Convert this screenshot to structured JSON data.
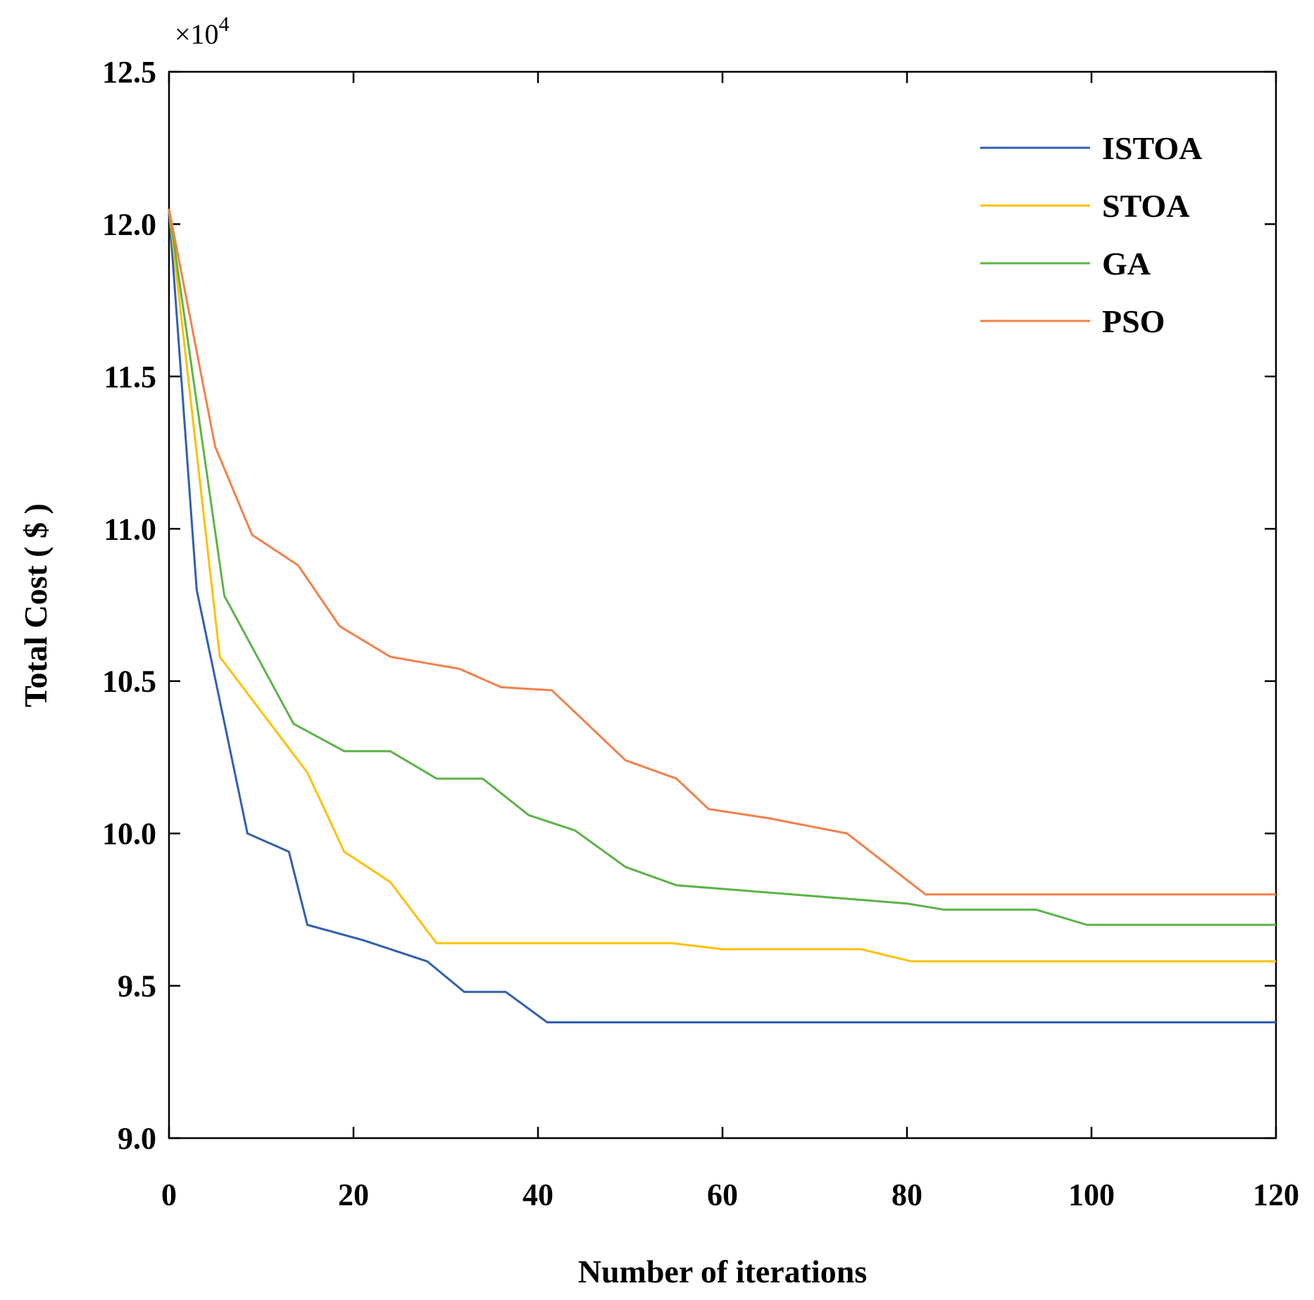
{
  "chart_data": {
    "type": "line",
    "xlabel": "Number of iterations",
    "ylabel": "Total Cost ( $ )",
    "y_multiplier": "×10",
    "y_multiplier_exp": "4",
    "xlim": [
      0,
      120
    ],
    "ylim": [
      9.0,
      12.5
    ],
    "xticks": [
      0,
      20,
      40,
      60,
      80,
      100,
      120
    ],
    "yticks": [
      9.0,
      9.5,
      10.0,
      10.5,
      11.0,
      11.5,
      12.0,
      12.5
    ],
    "xtick_labels": [
      "0",
      "20",
      "40",
      "60",
      "80",
      "100",
      "120"
    ],
    "ytick_labels": [
      "9.0",
      "9.5",
      "10.0",
      "10.5",
      "11.0",
      "11.5",
      "12.0",
      "12.5"
    ],
    "grid": false,
    "legend_position": "top-right",
    "series": [
      {
        "name": "ISTOA",
        "color": "#3060b0",
        "points": [
          [
            0,
            12.05
          ],
          [
            3,
            10.8
          ],
          [
            8.5,
            10.0
          ],
          [
            13,
            9.94
          ],
          [
            15,
            9.7
          ],
          [
            21,
            9.65
          ],
          [
            28,
            9.58
          ],
          [
            32,
            9.48
          ],
          [
            36.5,
            9.48
          ],
          [
            41,
            9.38
          ],
          [
            120,
            9.38
          ]
        ]
      },
      {
        "name": "STOA",
        "color": "#ffc000",
        "points": [
          [
            0,
            12.05
          ],
          [
            5.5,
            10.58
          ],
          [
            15,
            10.2
          ],
          [
            19,
            9.94
          ],
          [
            24,
            9.84
          ],
          [
            29,
            9.64
          ],
          [
            54.5,
            9.64
          ],
          [
            60,
            9.62
          ],
          [
            75,
            9.62
          ],
          [
            80.5,
            9.58
          ],
          [
            120,
            9.58
          ]
        ]
      },
      {
        "name": "GA",
        "color": "#5ab446",
        "points": [
          [
            0,
            12.05
          ],
          [
            6,
            10.78
          ],
          [
            13.5,
            10.36
          ],
          [
            19,
            10.27
          ],
          [
            24,
            10.27
          ],
          [
            29,
            10.18
          ],
          [
            34,
            10.18
          ],
          [
            39,
            10.06
          ],
          [
            44,
            10.01
          ],
          [
            49.5,
            9.89
          ],
          [
            55,
            9.83
          ],
          [
            80,
            9.77
          ],
          [
            84,
            9.75
          ],
          [
            94,
            9.75
          ],
          [
            99.5,
            9.7
          ],
          [
            120,
            9.7
          ]
        ]
      },
      {
        "name": "PSO",
        "color": "#f4804a",
        "points": [
          [
            0,
            12.05
          ],
          [
            5,
            11.27
          ],
          [
            9,
            10.98
          ],
          [
            14,
            10.88
          ],
          [
            18.5,
            10.68
          ],
          [
            24,
            10.58
          ],
          [
            31.5,
            10.54
          ],
          [
            36,
            10.48
          ],
          [
            41.5,
            10.47
          ],
          [
            49.5,
            10.24
          ],
          [
            55,
            10.18
          ],
          [
            58.5,
            10.08
          ],
          [
            65,
            10.05
          ],
          [
            73.5,
            10.0
          ],
          [
            82,
            9.8
          ],
          [
            120,
            9.8
          ]
        ]
      }
    ]
  }
}
